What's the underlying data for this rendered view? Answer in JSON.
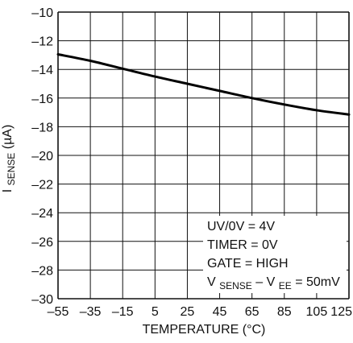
{
  "chart_data": {
    "type": "line",
    "title": "",
    "xlabel": "TEMPERATURE (°C)",
    "ylabel": {
      "main": "I",
      "sub": "SENSE",
      "unit": " (µA)"
    },
    "xlim": [
      -55,
      125
    ],
    "ylim": [
      -30,
      -10
    ],
    "xticks": [
      -55,
      -35,
      -15,
      5,
      25,
      45,
      65,
      85,
      105,
      125
    ],
    "yticks": [
      -10,
      -12,
      -14,
      -16,
      -18,
      -20,
      -22,
      -24,
      -26,
      -28,
      -30
    ],
    "xtick_labels": [
      "–55",
      "–35",
      "–15",
      "5",
      "25",
      "45",
      "65",
      "85",
      "105",
      "125"
    ],
    "ytick_labels": [
      "–10",
      "–12",
      "–14",
      "–16",
      "–18",
      "–20",
      "–22",
      "–24",
      "–26",
      "–28",
      "–30"
    ],
    "grid": true,
    "legend": "none",
    "series": [
      {
        "x": [
          -55,
          -35,
          -15,
          5,
          25,
          45,
          65,
          85,
          105,
          125
        ],
        "values": [
          -12.95,
          -13.4,
          -13.95,
          -14.5,
          -15.0,
          -15.5,
          -16.0,
          -16.45,
          -16.85,
          -17.15
        ]
      }
    ],
    "annotations": {
      "line1": "UV/0V = 4V",
      "line2": "TIMER = 0V",
      "line3": "GATE = HIGH",
      "line4": {
        "v": "V",
        "sense": "SENSE",
        "mid": " – V",
        "ee": "EE",
        "tail": " = 50mV"
      }
    },
    "colors": {
      "grid": "#111111",
      "line": "#000000",
      "text": "#111111"
    }
  }
}
